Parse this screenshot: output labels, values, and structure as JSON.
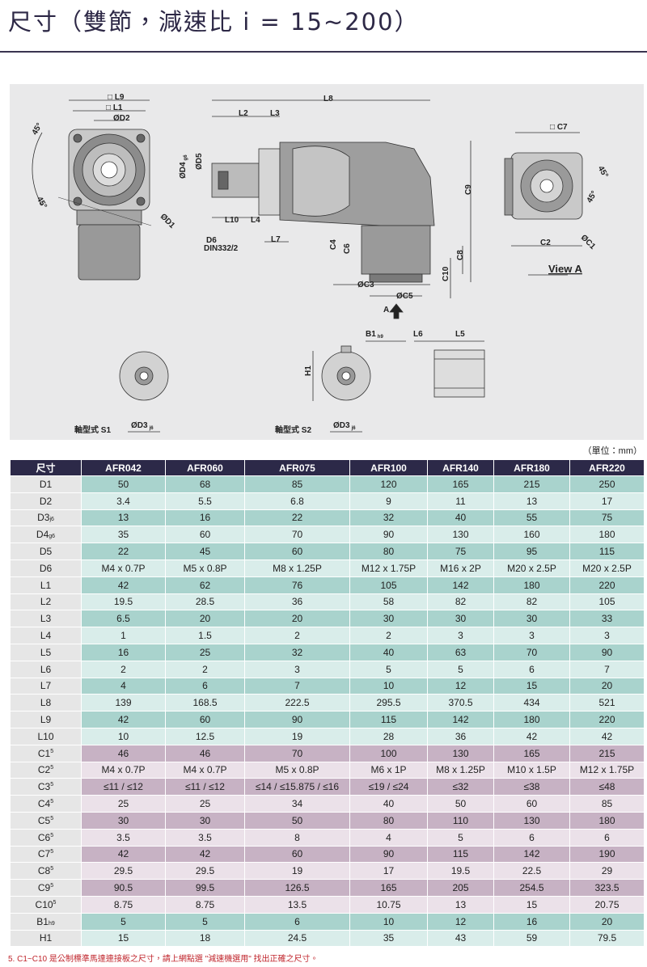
{
  "title": "尺寸（雙節，減速比 i = 15~200）",
  "drawing": {
    "labels": [
      {
        "text": "□ L9"
      },
      {
        "text": "□ L1"
      },
      {
        "text": "ØD2"
      },
      {
        "text": "45°"
      },
      {
        "text": "45°"
      },
      {
        "text": "ØD1"
      },
      {
        "text": "L8"
      },
      {
        "text": "L2"
      },
      {
        "text": "L3"
      },
      {
        "text": "ØD4",
        "sub": "g6"
      },
      {
        "text": "ØD5"
      },
      {
        "text": "L10"
      },
      {
        "text": "L4"
      },
      {
        "text": "D6"
      },
      {
        "text": "DIN332/2"
      },
      {
        "text": "L7"
      },
      {
        "text": "C4"
      },
      {
        "text": "C6"
      },
      {
        "text": "C9"
      },
      {
        "text": "C8"
      },
      {
        "text": "C10"
      },
      {
        "text": "ØC3"
      },
      {
        "text": "ØC5"
      },
      {
        "text": "A"
      },
      {
        "text": "□ C7"
      },
      {
        "text": "45°"
      },
      {
        "text": "45°"
      },
      {
        "text": "C2"
      },
      {
        "text": "ØC1"
      },
      {
        "text": "View A"
      },
      {
        "text": "B1",
        "sub": "h9"
      },
      {
        "text": "L6"
      },
      {
        "text": "L5"
      },
      {
        "text": "H1"
      },
      {
        "text": "軸型式 S1"
      },
      {
        "text": "ØD3",
        "sub": "j6"
      },
      {
        "text": "軸型式 S2"
      },
      {
        "text": "ØD3",
        "sub": "j6"
      }
    ]
  },
  "unit": "（單位：mm）",
  "table": {
    "header": [
      "尺寸",
      "AFR042",
      "AFR060",
      "AFR075",
      "AFR100",
      "AFR140",
      "AFR180",
      "AFR220"
    ],
    "rows": [
      {
        "label": "D1",
        "values": [
          "50",
          "68",
          "85",
          "120",
          "165",
          "215",
          "250"
        ]
      },
      {
        "label": "D2",
        "values": [
          "3.4",
          "5.5",
          "6.8",
          "9",
          "11",
          "13",
          "17"
        ]
      },
      {
        "label": "D3",
        "sub": "j6",
        "values": [
          "13",
          "16",
          "22",
          "32",
          "40",
          "55",
          "75"
        ]
      },
      {
        "label": "D4",
        "sub": "g6",
        "values": [
          "35",
          "60",
          "70",
          "90",
          "130",
          "160",
          "180"
        ]
      },
      {
        "label": "D5",
        "values": [
          "22",
          "45",
          "60",
          "80",
          "75",
          "95",
          "115"
        ]
      },
      {
        "label": "D6",
        "values": [
          "M4 x 0.7P",
          "M5 x 0.8P",
          "M8 x 1.25P",
          "M12 x 1.75P",
          "M16 x 2P",
          "M20 x 2.5P",
          "M20 x 2.5P"
        ]
      },
      {
        "label": "L1",
        "values": [
          "42",
          "62",
          "76",
          "105",
          "142",
          "180",
          "220"
        ]
      },
      {
        "label": "L2",
        "values": [
          "19.5",
          "28.5",
          "36",
          "58",
          "82",
          "82",
          "105"
        ]
      },
      {
        "label": "L3",
        "values": [
          "6.5",
          "20",
          "20",
          "30",
          "30",
          "30",
          "33"
        ]
      },
      {
        "label": "L4",
        "values": [
          "1",
          "1.5",
          "2",
          "2",
          "3",
          "3",
          "3"
        ]
      },
      {
        "label": "L5",
        "values": [
          "16",
          "25",
          "32",
          "40",
          "63",
          "70",
          "90"
        ]
      },
      {
        "label": "L6",
        "values": [
          "2",
          "2",
          "3",
          "5",
          "5",
          "6",
          "7"
        ]
      },
      {
        "label": "L7",
        "values": [
          "4",
          "6",
          "7",
          "10",
          "12",
          "15",
          "20"
        ]
      },
      {
        "label": "L8",
        "values": [
          "139",
          "168.5",
          "222.5",
          "295.5",
          "370.5",
          "434",
          "521"
        ]
      },
      {
        "label": "L9",
        "values": [
          "42",
          "60",
          "90",
          "115",
          "142",
          "180",
          "220"
        ]
      },
      {
        "label": "L10",
        "values": [
          "10",
          "12.5",
          "19",
          "28",
          "36",
          "42",
          "42"
        ]
      },
      {
        "label": "C1",
        "sup": "5",
        "values": [
          "46",
          "46",
          "70",
          "100",
          "130",
          "165",
          "215"
        ]
      },
      {
        "label": "C2",
        "sup": "5",
        "values": [
          "M4 x 0.7P",
          "M4 x 0.7P",
          "M5 x 0.8P",
          "M6 x 1P",
          "M8 x 1.25P",
          "M10 x 1.5P",
          "M12 x 1.75P"
        ]
      },
      {
        "label": "C3",
        "sup": "5",
        "values": [
          "≤11 / ≤12",
          "≤11 / ≤12",
          "≤14 / ≤15.875 / ≤16",
          "≤19 / ≤24",
          "≤32",
          "≤38",
          "≤48"
        ]
      },
      {
        "label": "C4",
        "sup": "5",
        "values": [
          "25",
          "25",
          "34",
          "40",
          "50",
          "60",
          "85"
        ]
      },
      {
        "label": "C5",
        "sup": "5",
        "values": [
          "30",
          "30",
          "50",
          "80",
          "110",
          "130",
          "180"
        ]
      },
      {
        "label": "C6",
        "sup": "5",
        "values": [
          "3.5",
          "3.5",
          "8",
          "4",
          "5",
          "6",
          "6"
        ]
      },
      {
        "label": "C7",
        "sup": "5",
        "values": [
          "42",
          "42",
          "60",
          "90",
          "115",
          "142",
          "190"
        ]
      },
      {
        "label": "C8",
        "sup": "5",
        "values": [
          "29.5",
          "29.5",
          "19",
          "17",
          "19.5",
          "22.5",
          "29"
        ]
      },
      {
        "label": "C9",
        "sup": "5",
        "values": [
          "90.5",
          "99.5",
          "126.5",
          "165",
          "205",
          "254.5",
          "323.5"
        ]
      },
      {
        "label": "C10",
        "sup": "5",
        "values": [
          "8.75",
          "8.75",
          "13.5",
          "10.75",
          "13",
          "15",
          "20.75"
        ]
      },
      {
        "label": "B1",
        "sub": "h9",
        "values": [
          "5",
          "5",
          "6",
          "10",
          "12",
          "16",
          "20"
        ]
      },
      {
        "label": "H1",
        "values": [
          "15",
          "18",
          "24.5",
          "35",
          "43",
          "59",
          "79.5"
        ]
      }
    ]
  },
  "footnote": "5. C1~C10 是公制標準馬達連接板之尺寸，請上網點選 \"減速機選用\" 找出正確之尺寸。"
}
